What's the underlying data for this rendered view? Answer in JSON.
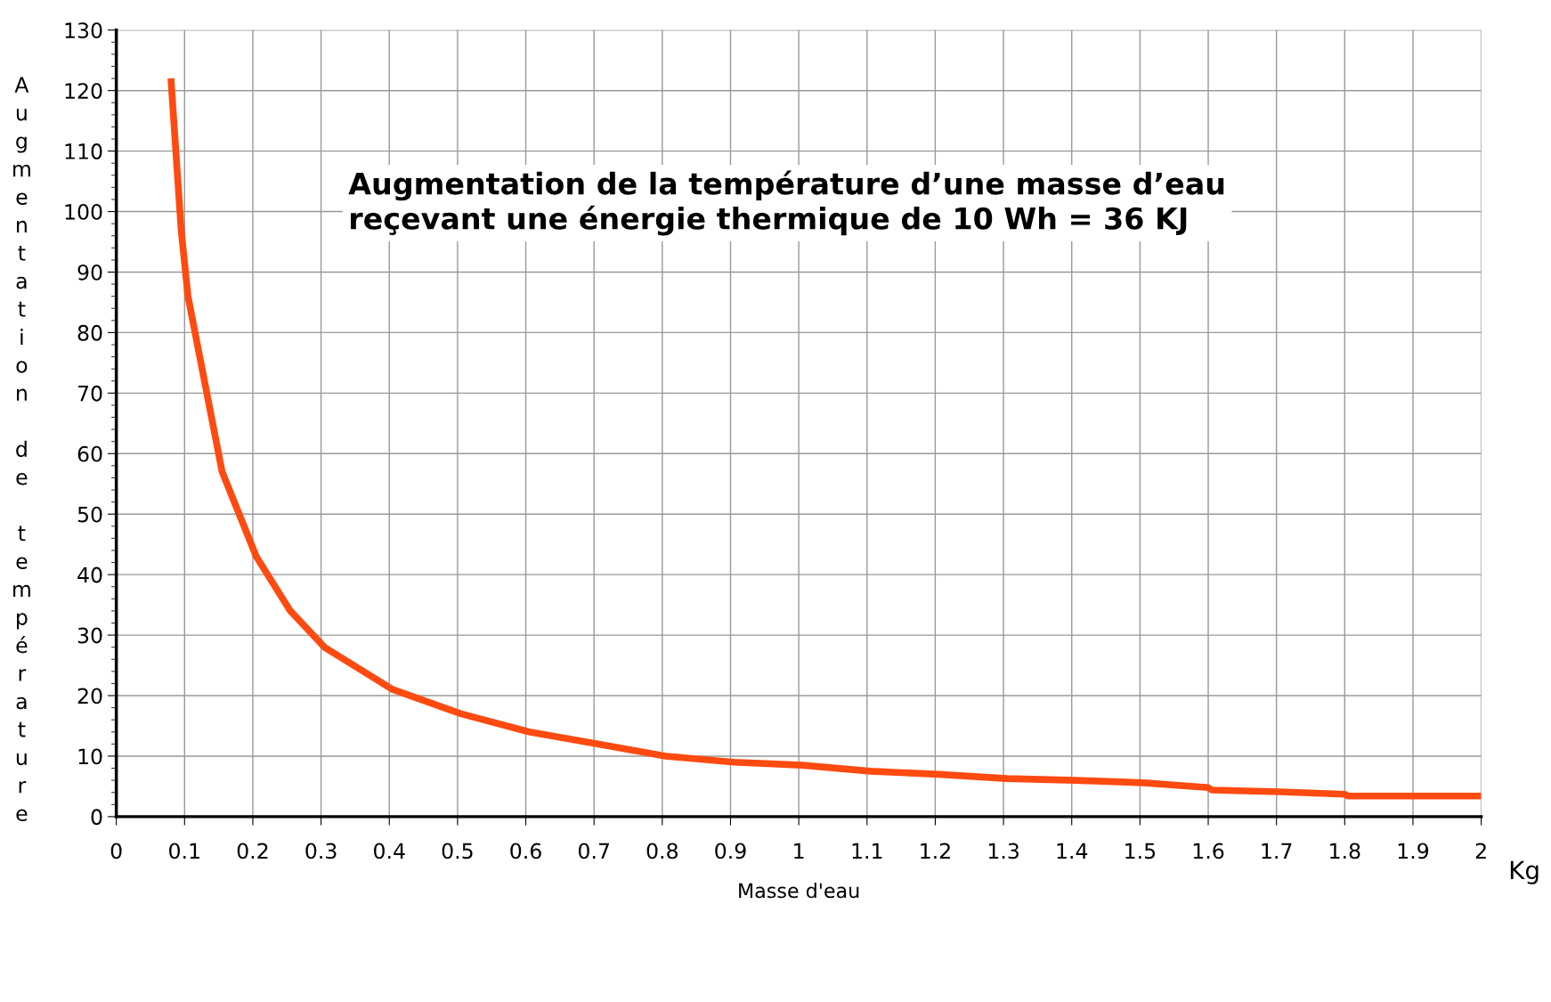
{
  "chart_data": {
    "type": "line",
    "title": "Augmentation de la température d’une masse d’eau\nreçevant une énergie thermique de 10 Wh = 36 KJ",
    "xlabel": "Masse d'eau",
    "ylabel": "Augmentation de température",
    "annotations": [
      "Kg"
    ],
    "x": [
      0.08,
      0.095,
      0.105,
      0.155,
      0.205,
      0.255,
      0.305,
      0.405,
      0.505,
      0.605,
      0.705,
      0.805,
      0.905,
      1.005,
      1.105,
      1.205,
      1.305,
      1.405,
      1.505,
      1.6,
      1.605,
      1.705,
      1.8,
      1.805,
      2.0
    ],
    "series": [
      {
        "color": "#ff4a10",
        "values": [
          122,
          97,
          86,
          57,
          43,
          34,
          28,
          21,
          17,
          14,
          12,
          10,
          9,
          8.5,
          7.5,
          7,
          6.3,
          6,
          5.6,
          4.8,
          4.4,
          4.1,
          3.7,
          3.4,
          3.4
        ]
      }
    ],
    "xlim": [
      0,
      2
    ],
    "ylim": [
      0,
      130
    ],
    "xticks": [
      0,
      {
        "value": 0.1,
        "label": "0.1"
      },
      {
        "value": 0.2,
        "label": "0.2"
      },
      {
        "value": 0.3,
        "label": "0.3"
      },
      {
        "value": 0.4,
        "label": "0.4"
      },
      {
        "value": 0.5,
        "label": "0.5"
      },
      {
        "value": 0.6,
        "label": "0.6"
      },
      {
        "value": 0.7,
        "label": "0.7"
      },
      {
        "value": 0.8,
        "label": "0.8"
      },
      {
        "value": 0.9,
        "label": "0.9"
      },
      1,
      {
        "value": 1.1,
        "label": "1.1"
      },
      {
        "value": 1.2,
        "label": "1.2"
      },
      {
        "value": 1.3,
        "label": "1.3"
      },
      {
        "value": 1.4,
        "label": "1.4"
      },
      {
        "value": 1.5,
        "label": "1.5"
      },
      {
        "value": 1.6,
        "label": "1.6"
      },
      {
        "value": 1.7,
        "label": "1.7"
      },
      {
        "value": 1.8,
        "label": "1.8"
      },
      {
        "value": 1.9,
        "label": "1.9"
      },
      2
    ],
    "yticks": [
      0,
      10,
      20,
      30,
      40,
      50,
      60,
      70,
      80,
      90,
      100,
      110,
      120,
      130
    ],
    "grid": true,
    "legend": false,
    "marker": "none",
    "line_style": "solid"
  }
}
